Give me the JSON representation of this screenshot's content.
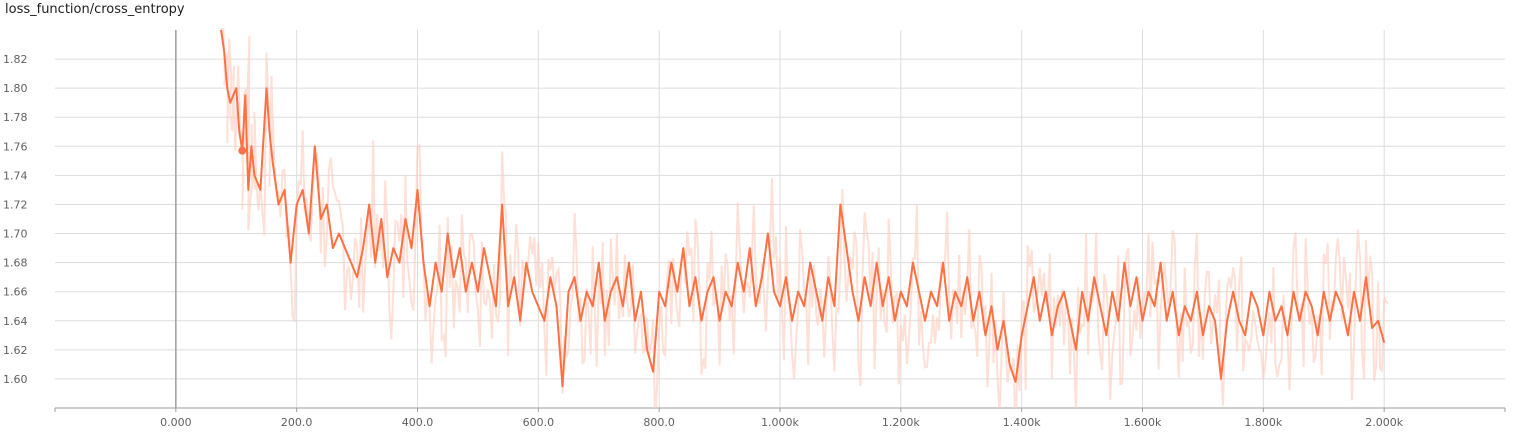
{
  "header": {
    "title": "loss_function/cross_entropy"
  },
  "colors": {
    "smoothed": "#ff7043",
    "raw": "#ffccbc",
    "grid": "#dddddd",
    "axis": "#9e9e9e"
  },
  "chart_data": {
    "type": "line",
    "title": "loss_function/cross_entropy",
    "xlabel": "",
    "ylabel": "",
    "xlim": [
      -200,
      2200
    ],
    "ylim": [
      1.58,
      1.84
    ],
    "x_ticks": [
      0,
      200,
      400,
      600,
      800,
      1000,
      1200,
      1400,
      1600,
      1800,
      2000
    ],
    "x_tick_labels": [
      "0.000",
      "200.0",
      "400.0",
      "600.0",
      "800.0",
      "1.000k",
      "1.200k",
      "1.400k",
      "1.600k",
      "1.800k",
      "2.000k"
    ],
    "y_ticks": [
      1.6,
      1.62,
      1.64,
      1.66,
      1.68,
      1.7,
      1.72,
      1.74,
      1.76,
      1.78,
      1.8,
      1.82
    ],
    "y_tick_labels": [
      "1.60",
      "1.62",
      "1.64",
      "1.66",
      "1.68",
      "1.70",
      "1.72",
      "1.74",
      "1.76",
      "1.78",
      "1.80",
      "1.82"
    ],
    "grid": true,
    "highlight_point": {
      "x": 110,
      "y": 1.757
    },
    "series": [
      {
        "style": "smoothed",
        "points": [
          [
            75,
            1.84
          ],
          [
            80,
            1.825
          ],
          [
            85,
            1.8
          ],
          [
            90,
            1.79
          ],
          [
            95,
            1.795
          ],
          [
            100,
            1.8
          ],
          [
            105,
            1.77
          ],
          [
            110,
            1.757
          ],
          [
            115,
            1.795
          ],
          [
            120,
            1.73
          ],
          [
            125,
            1.76
          ],
          [
            130,
            1.74
          ],
          [
            140,
            1.73
          ],
          [
            150,
            1.8
          ],
          [
            155,
            1.77
          ],
          [
            160,
            1.75
          ],
          [
            170,
            1.72
          ],
          [
            180,
            1.73
          ],
          [
            190,
            1.68
          ],
          [
            200,
            1.72
          ],
          [
            210,
            1.73
          ],
          [
            220,
            1.7
          ],
          [
            230,
            1.76
          ],
          [
            240,
            1.71
          ],
          [
            250,
            1.72
          ],
          [
            260,
            1.69
          ],
          [
            270,
            1.7
          ],
          [
            280,
            1.69
          ],
          [
            290,
            1.68
          ],
          [
            300,
            1.67
          ],
          [
            310,
            1.69
          ],
          [
            320,
            1.72
          ],
          [
            330,
            1.68
          ],
          [
            340,
            1.71
          ],
          [
            350,
            1.67
          ],
          [
            360,
            1.69
          ],
          [
            370,
            1.68
          ],
          [
            380,
            1.71
          ],
          [
            390,
            1.69
          ],
          [
            400,
            1.73
          ],
          [
            410,
            1.68
          ],
          [
            420,
            1.65
          ],
          [
            430,
            1.68
          ],
          [
            440,
            1.66
          ],
          [
            450,
            1.7
          ],
          [
            460,
            1.67
          ],
          [
            470,
            1.69
          ],
          [
            480,
            1.66
          ],
          [
            490,
            1.68
          ],
          [
            500,
            1.66
          ],
          [
            510,
            1.69
          ],
          [
            520,
            1.67
          ],
          [
            530,
            1.65
          ],
          [
            540,
            1.72
          ],
          [
            550,
            1.65
          ],
          [
            560,
            1.67
          ],
          [
            570,
            1.64
          ],
          [
            580,
            1.68
          ],
          [
            590,
            1.66
          ],
          [
            600,
            1.65
          ],
          [
            610,
            1.64
          ],
          [
            620,
            1.67
          ],
          [
            630,
            1.65
          ],
          [
            640,
            1.595
          ],
          [
            650,
            1.66
          ],
          [
            660,
            1.67
          ],
          [
            670,
            1.64
          ],
          [
            680,
            1.66
          ],
          [
            690,
            1.65
          ],
          [
            700,
            1.68
          ],
          [
            710,
            1.64
          ],
          [
            720,
            1.66
          ],
          [
            730,
            1.67
          ],
          [
            740,
            1.65
          ],
          [
            750,
            1.68
          ],
          [
            760,
            1.64
          ],
          [
            770,
            1.66
          ],
          [
            780,
            1.62
          ],
          [
            790,
            1.605
          ],
          [
            800,
            1.66
          ],
          [
            810,
            1.65
          ],
          [
            820,
            1.68
          ],
          [
            830,
            1.66
          ],
          [
            840,
            1.69
          ],
          [
            850,
            1.65
          ],
          [
            860,
            1.67
          ],
          [
            870,
            1.64
          ],
          [
            880,
            1.66
          ],
          [
            890,
            1.67
          ],
          [
            900,
            1.64
          ],
          [
            910,
            1.66
          ],
          [
            920,
            1.65
          ],
          [
            930,
            1.68
          ],
          [
            940,
            1.66
          ],
          [
            950,
            1.69
          ],
          [
            960,
            1.65
          ],
          [
            970,
            1.67
          ],
          [
            980,
            1.7
          ],
          [
            990,
            1.66
          ],
          [
            1000,
            1.65
          ],
          [
            1010,
            1.67
          ],
          [
            1020,
            1.64
          ],
          [
            1030,
            1.66
          ],
          [
            1040,
            1.65
          ],
          [
            1050,
            1.68
          ],
          [
            1060,
            1.66
          ],
          [
            1070,
            1.64
          ],
          [
            1080,
            1.67
          ],
          [
            1090,
            1.65
          ],
          [
            1100,
            1.72
          ],
          [
            1110,
            1.69
          ],
          [
            1120,
            1.66
          ],
          [
            1130,
            1.64
          ],
          [
            1140,
            1.67
          ],
          [
            1150,
            1.65
          ],
          [
            1160,
            1.68
          ],
          [
            1170,
            1.65
          ],
          [
            1180,
            1.67
          ],
          [
            1190,
            1.64
          ],
          [
            1200,
            1.66
          ],
          [
            1210,
            1.65
          ],
          [
            1220,
            1.68
          ],
          [
            1230,
            1.66
          ],
          [
            1240,
            1.64
          ],
          [
            1250,
            1.66
          ],
          [
            1260,
            1.65
          ],
          [
            1270,
            1.68
          ],
          [
            1280,
            1.64
          ],
          [
            1290,
            1.66
          ],
          [
            1300,
            1.65
          ],
          [
            1310,
            1.67
          ],
          [
            1320,
            1.64
          ],
          [
            1330,
            1.66
          ],
          [
            1340,
            1.63
          ],
          [
            1350,
            1.65
          ],
          [
            1360,
            1.62
          ],
          [
            1370,
            1.64
          ],
          [
            1380,
            1.61
          ],
          [
            1390,
            1.598
          ],
          [
            1400,
            1.63
          ],
          [
            1410,
            1.65
          ],
          [
            1420,
            1.67
          ],
          [
            1430,
            1.64
          ],
          [
            1440,
            1.66
          ],
          [
            1450,
            1.63
          ],
          [
            1460,
            1.65
          ],
          [
            1470,
            1.66
          ],
          [
            1480,
            1.64
          ],
          [
            1490,
            1.62
          ],
          [
            1500,
            1.66
          ],
          [
            1510,
            1.64
          ],
          [
            1520,
            1.67
          ],
          [
            1530,
            1.65
          ],
          [
            1540,
            1.63
          ],
          [
            1550,
            1.66
          ],
          [
            1560,
            1.64
          ],
          [
            1570,
            1.68
          ],
          [
            1580,
            1.65
          ],
          [
            1590,
            1.67
          ],
          [
            1600,
            1.64
          ],
          [
            1610,
            1.66
          ],
          [
            1620,
            1.65
          ],
          [
            1630,
            1.68
          ],
          [
            1640,
            1.64
          ],
          [
            1650,
            1.66
          ],
          [
            1660,
            1.63
          ],
          [
            1670,
            1.65
          ],
          [
            1680,
            1.64
          ],
          [
            1690,
            1.66
          ],
          [
            1700,
            1.63
          ],
          [
            1710,
            1.65
          ],
          [
            1720,
            1.64
          ],
          [
            1730,
            1.6
          ],
          [
            1740,
            1.64
          ],
          [
            1750,
            1.66
          ],
          [
            1760,
            1.64
          ],
          [
            1770,
            1.63
          ],
          [
            1780,
            1.66
          ],
          [
            1790,
            1.65
          ],
          [
            1800,
            1.63
          ],
          [
            1810,
            1.66
          ],
          [
            1820,
            1.64
          ],
          [
            1830,
            1.65
          ],
          [
            1840,
            1.63
          ],
          [
            1850,
            1.66
          ],
          [
            1860,
            1.64
          ],
          [
            1870,
            1.66
          ],
          [
            1880,
            1.65
          ],
          [
            1890,
            1.63
          ],
          [
            1900,
            1.66
          ],
          [
            1910,
            1.64
          ],
          [
            1920,
            1.66
          ],
          [
            1930,
            1.65
          ],
          [
            1940,
            1.63
          ],
          [
            1950,
            1.66
          ],
          [
            1960,
            1.64
          ],
          [
            1970,
            1.67
          ],
          [
            1980,
            1.635
          ],
          [
            1990,
            1.64
          ],
          [
            2000,
            1.625
          ]
        ]
      }
    ]
  }
}
